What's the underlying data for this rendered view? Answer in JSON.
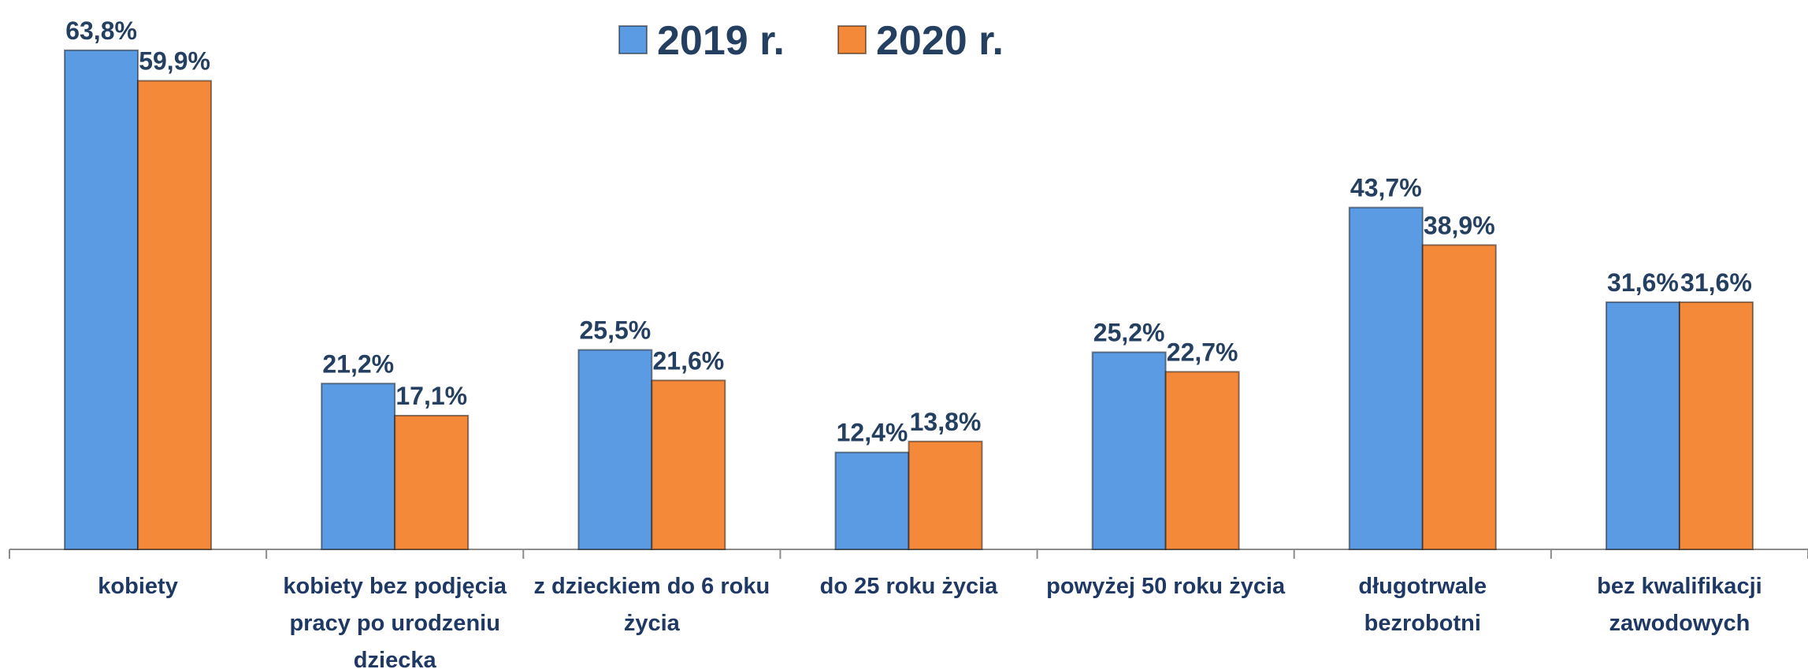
{
  "chart_data": {
    "type": "bar",
    "categories": [
      "kobiety",
      "kobiety bez podjęcia pracy po urodzeniu dziecka",
      "z dzieckiem do 6 roku życia",
      "do 25 roku życia",
      "powyżej 50 roku życia",
      "długotrwale bezrobotni",
      "bez kwalifikacji zawodowych"
    ],
    "series": [
      {
        "name": "2019 r.",
        "color": "#5b9be3",
        "values": [
          63.8,
          21.2,
          25.5,
          12.4,
          25.2,
          43.7,
          31.6
        ],
        "value_labels": [
          "63,8%",
          "21,2%",
          "25,5%",
          "12,4%",
          "25,2%",
          "43,7%",
          "31,6%"
        ]
      },
      {
        "name": "2020 r.",
        "color": "#f5893a",
        "values": [
          59.9,
          17.1,
          21.6,
          13.8,
          22.7,
          38.9,
          31.6
        ],
        "value_labels": [
          "59,9%",
          "17,1%",
          "21,6%",
          "13,8%",
          "22,7%",
          "38,9%",
          "31,6%"
        ]
      }
    ],
    "legend": "top"
  }
}
